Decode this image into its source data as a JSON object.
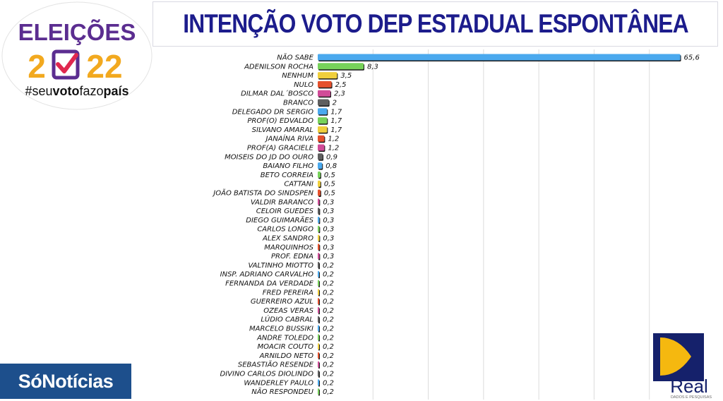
{
  "header": {
    "title": "INTENÇÃO VOTO DEP ESTADUAL ESPONTÂNEA"
  },
  "logos": {
    "elections_word": "ELEIÇÕES",
    "elections_year_a": "2",
    "elections_year_b": "22",
    "elections_hashtag_a": "#seu",
    "elections_hashtag_b": "voto",
    "elections_hashtag_c": "fazo",
    "elections_hashtag_d": "país",
    "news_brand": "SóNotícias",
    "institute_name": "Real",
    "institute_tagline": "DADOS E PESQUISAS"
  },
  "colors": {
    "title": "#1c1c8c",
    "elections_purple": "#5b2d90",
    "elections_orange": "#f2a91f",
    "news_badge": "#1d4f8c",
    "institute_navy": "#15216b",
    "institute_gold": "#f5b80f"
  },
  "chart_data": {
    "type": "bar",
    "orientation": "horizontal",
    "title": "INTENÇÃO VOTO DEP ESTADUAL ESPONTÂNEA",
    "xlim": [
      0,
      70
    ],
    "grid": true,
    "legend": "none",
    "categories": [
      "NÃO SABE",
      "ADENILSON ROCHA",
      "NENHUM",
      "NULO",
      "DILMAR DAL´BOSCO",
      "BRANCO",
      "DELEGADO DR SERGIO",
      "PROF(O) EDVALDO",
      "SILVANO AMARAL",
      "JANAÍNA RIVA",
      "PROF(A) GRACIELE",
      "MOISEIS DO JD DO OURO",
      "BAIANO FILHO",
      "BETO CORREIA",
      "CATTANI",
      "JOÃO BATISTA DO SINDSPEN",
      "VALDIR BARANCO",
      "CELOIR GUEDES",
      "DIEGO GUIMARÃES",
      "CARLOS LONGO",
      "ALEX SANDRO",
      "MARQUINHOS",
      "PROF. EDNA",
      "VALTINHO MIOTTO",
      "INSP. ADRIANO CARVALHO",
      "FERNANDA DA VERDADE",
      "FRED PEREIRA",
      "GUERREIRO AZUL",
      "OZEAS VERAS",
      "LÚDIO CABRAL",
      "MARCELO BUSSIKI",
      "ANDRE TOLEDO",
      "MOACIR COUTO",
      "ARNILDO NETO",
      "SEBASTIÃO RESENDE",
      "DIVINO CARLOS DIOLINDO",
      "WANDERLEY PAULO",
      "NÃO RESPONDEU"
    ],
    "values": [
      65.6,
      8.3,
      3.5,
      2.5,
      2.3,
      2,
      1.7,
      1.7,
      1.7,
      1.2,
      1.2,
      0.9,
      0.8,
      0.5,
      0.5,
      0.5,
      0.3,
      0.3,
      0.3,
      0.3,
      0.3,
      0.3,
      0.3,
      0.2,
      0.2,
      0.2,
      0.2,
      0.2,
      0.2,
      0.2,
      0.2,
      0.2,
      0.2,
      0.2,
      0.2,
      0.2,
      0.2,
      0.2
    ],
    "value_labels": [
      "65,6",
      "8,3",
      "3,5",
      "2,5",
      "2,3",
      "2",
      "1,7",
      "1,7",
      "1,7",
      "1,2",
      "1,2",
      "0,9",
      "0,8",
      "0,5",
      "0,5",
      "0,5",
      "0,3",
      "0,3",
      "0,3",
      "0,3",
      "0,3",
      "0,3",
      "0,3",
      "0,2",
      "0,2",
      "0,2",
      "0,2",
      "0,2",
      "0,2",
      "0,2",
      "0,2",
      "0,2",
      "0,2",
      "0,2",
      "0,2",
      "0,2",
      "0,2",
      "0,2"
    ],
    "bar_colors": [
      "#4aa9ee",
      "#77d25a",
      "#f0cf3c",
      "#e5502c",
      "#d14b98",
      "#5f5f5f",
      "#4aa9ee",
      "#77d25a",
      "#f0cf3c",
      "#e5502c",
      "#d14b98",
      "#5f5f5f",
      "#4aa9ee",
      "#77d25a",
      "#f0cf3c",
      "#e5502c",
      "#d14b98",
      "#5f5f5f",
      "#4aa9ee",
      "#77d25a",
      "#f0cf3c",
      "#e5502c",
      "#d14b98",
      "#5f5f5f",
      "#4aa9ee",
      "#77d25a",
      "#f0cf3c",
      "#e5502c",
      "#d14b98",
      "#5f5f5f",
      "#4aa9ee",
      "#77d25a",
      "#f0cf3c",
      "#e5502c",
      "#d14b98",
      "#5f5f5f",
      "#4aa9ee",
      "#77d25a"
    ]
  }
}
